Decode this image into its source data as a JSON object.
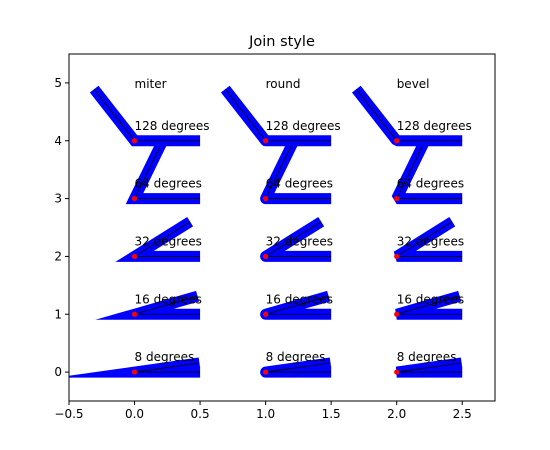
{
  "chart_data": {
    "type": "line",
    "title": "Join style",
    "xlabel": "",
    "ylabel": "",
    "xlim": [
      -0.5,
      2.75
    ],
    "ylim": [
      -0.5,
      5.5
    ],
    "xticks": [
      -0.5,
      0.0,
      0.5,
      1.0,
      1.5,
      2.0,
      2.5
    ],
    "xtick_labels": [
      "−0.5",
      "0.0",
      "0.5",
      "1.0",
      "1.5",
      "2.0",
      "2.5"
    ],
    "yticks": [
      0,
      1,
      2,
      3,
      4,
      5
    ],
    "ytick_labels": [
      "0",
      "1",
      "2",
      "3",
      "4",
      "5"
    ],
    "grid": false,
    "join_styles": [
      {
        "name": "miter",
        "x": 0
      },
      {
        "name": "round",
        "x": 1
      },
      {
        "name": "bevel",
        "x": 2
      }
    ],
    "angles": [
      {
        "label": "8 degrees",
        "y": 0,
        "degrees": 8
      },
      {
        "label": "16 degrees",
        "y": 1,
        "degrees": 16
      },
      {
        "label": "32 degrees",
        "y": 2,
        "degrees": 32
      },
      {
        "label": "64 degrees",
        "y": 3,
        "degrees": 64
      },
      {
        "label": "128 degrees",
        "y": 4,
        "degrees": 128
      }
    ],
    "colors": {
      "thick_line": "#0000ff",
      "thin_line": "#000000",
      "vertex_marker": "#ff0000"
    }
  }
}
